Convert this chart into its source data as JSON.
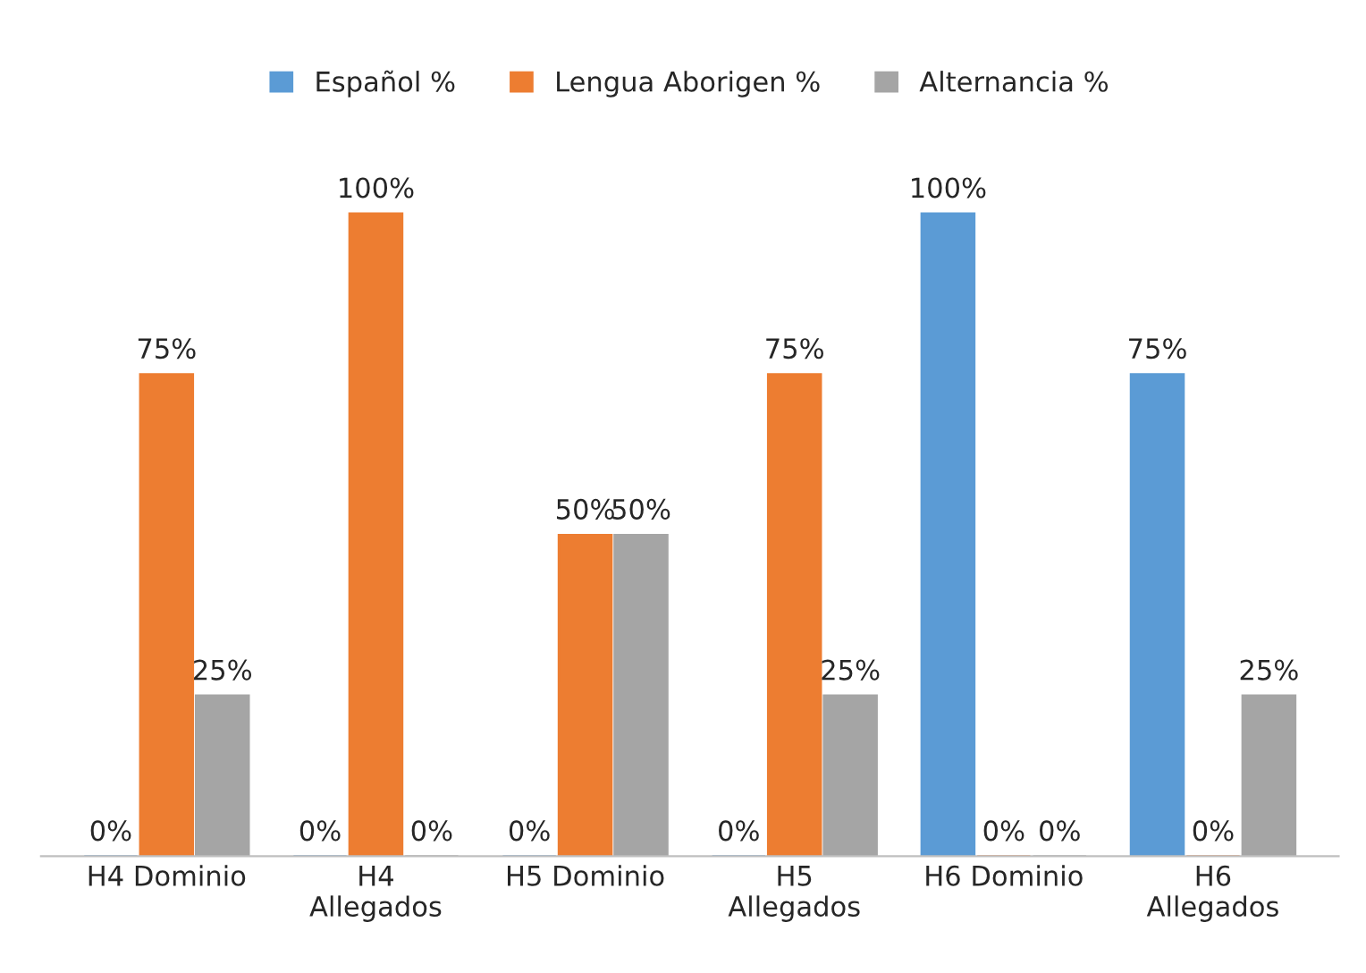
{
  "chart_data": {
    "type": "bar",
    "categories": [
      "H4 Dominio",
      "H4\nAllegados",
      "H5 Dominio",
      "H5\nAllegados",
      "H6 Dominio",
      "H6\nAllegados"
    ],
    "series": [
      {
        "name": "Español %",
        "color": "#5b9bd5",
        "values": [
          0,
          0,
          0,
          0,
          100,
          75
        ],
        "value_labels": [
          "0%",
          "0%",
          "0%",
          "0%",
          "100%",
          "75%"
        ]
      },
      {
        "name": "Lengua Aborigen %",
        "color": "#ed7d31",
        "values": [
          75,
          100,
          50,
          75,
          0,
          0
        ],
        "value_labels": [
          "75%",
          "100%",
          "50%",
          "75%",
          "0%",
          "0%"
        ]
      },
      {
        "name": "Alternancia %",
        "color": "#a5a5a5",
        "values": [
          25,
          0,
          50,
          25,
          0,
          25
        ],
        "value_labels": [
          "25%",
          "0%",
          "50%",
          "25%",
          "0%",
          "25%"
        ]
      }
    ],
    "legend": "top",
    "grid": false
  }
}
